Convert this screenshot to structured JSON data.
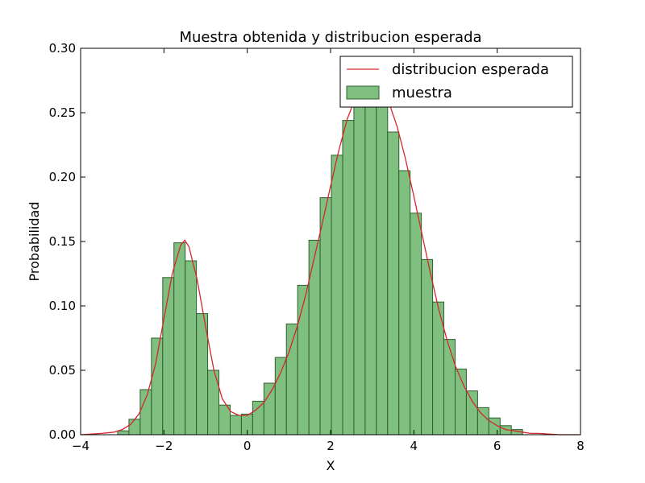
{
  "chart_data": {
    "type": "bar",
    "title": "Muestra obtenida y distribucion esperada",
    "xlabel": "X",
    "ylabel": "Probabilidad",
    "xlim": [
      -4,
      8
    ],
    "ylim": [
      0,
      0.3
    ],
    "xticks": [
      -4,
      -2,
      0,
      2,
      4,
      6,
      8
    ],
    "xtick_labels": [
      "−4",
      "−2",
      "0",
      "2",
      "4",
      "6",
      "8"
    ],
    "yticks": [
      0.0,
      0.05,
      0.1,
      0.15,
      0.2,
      0.25,
      0.3
    ],
    "ytick_labels": [
      "0.00",
      "0.05",
      "0.10",
      "0.15",
      "0.20",
      "0.25",
      "0.30"
    ],
    "grid": false,
    "legend": {
      "placement": "top-right"
    },
    "colors": {
      "histogram_fill": "#7fbf7f",
      "histogram_edge": "#2f5f2f",
      "curve": "#d62728"
    },
    "series": [
      {
        "name": "muestra",
        "type": "histogram",
        "bin_width": 0.27,
        "bin_starts": [
          -3.11,
          -2.84,
          -2.57,
          -2.3,
          -2.03,
          -1.76,
          -1.49,
          -1.22,
          -0.95,
          -0.68,
          -0.41,
          -0.14,
          0.13,
          0.4,
          0.67,
          0.94,
          1.21,
          1.48,
          1.75,
          2.02,
          2.29,
          2.56,
          2.83,
          3.1,
          3.37,
          3.64,
          3.91,
          4.18,
          4.45,
          4.72,
          4.99,
          5.26,
          5.53,
          5.8,
          6.07,
          6.34
        ],
        "values": [
          0.003,
          0.012,
          0.035,
          0.075,
          0.122,
          0.149,
          0.135,
          0.094,
          0.05,
          0.023,
          0.015,
          0.016,
          0.026,
          0.04,
          0.06,
          0.086,
          0.116,
          0.151,
          0.184,
          0.217,
          0.244,
          0.262,
          0.265,
          0.257,
          0.235,
          0.205,
          0.172,
          0.136,
          0.103,
          0.074,
          0.051,
          0.034,
          0.021,
          0.013,
          0.007,
          0.004
        ]
      },
      {
        "name": "distribucion esperada",
        "type": "line",
        "x": [
          -4.0,
          -3.5,
          -3.2,
          -3.0,
          -2.8,
          -2.6,
          -2.4,
          -2.2,
          -2.0,
          -1.8,
          -1.6,
          -1.5,
          -1.4,
          -1.2,
          -1.0,
          -0.8,
          -0.6,
          -0.4,
          -0.2,
          0.0,
          0.2,
          0.4,
          0.6,
          0.8,
          1.0,
          1.2,
          1.4,
          1.6,
          1.8,
          2.0,
          2.2,
          2.4,
          2.6,
          2.8,
          3.0,
          3.2,
          3.4,
          3.6,
          3.8,
          4.0,
          4.2,
          4.4,
          4.6,
          4.8,
          5.0,
          5.2,
          5.4,
          5.6,
          5.8,
          6.0,
          6.2,
          6.4,
          6.6,
          6.8,
          7.0,
          7.5,
          8.0
        ],
        "y": [
          0.0,
          0.001,
          0.002,
          0.004,
          0.008,
          0.016,
          0.031,
          0.055,
          0.09,
          0.125,
          0.147,
          0.151,
          0.146,
          0.12,
          0.084,
          0.05,
          0.028,
          0.018,
          0.015,
          0.015,
          0.019,
          0.025,
          0.035,
          0.048,
          0.064,
          0.084,
          0.108,
          0.136,
          0.164,
          0.193,
          0.221,
          0.245,
          0.262,
          0.272,
          0.275,
          0.271,
          0.258,
          0.239,
          0.214,
          0.185,
          0.155,
          0.125,
          0.097,
          0.073,
          0.053,
          0.038,
          0.026,
          0.017,
          0.011,
          0.007,
          0.004,
          0.003,
          0.002,
          0.001,
          0.001,
          0.0,
          0.0
        ]
      }
    ]
  }
}
